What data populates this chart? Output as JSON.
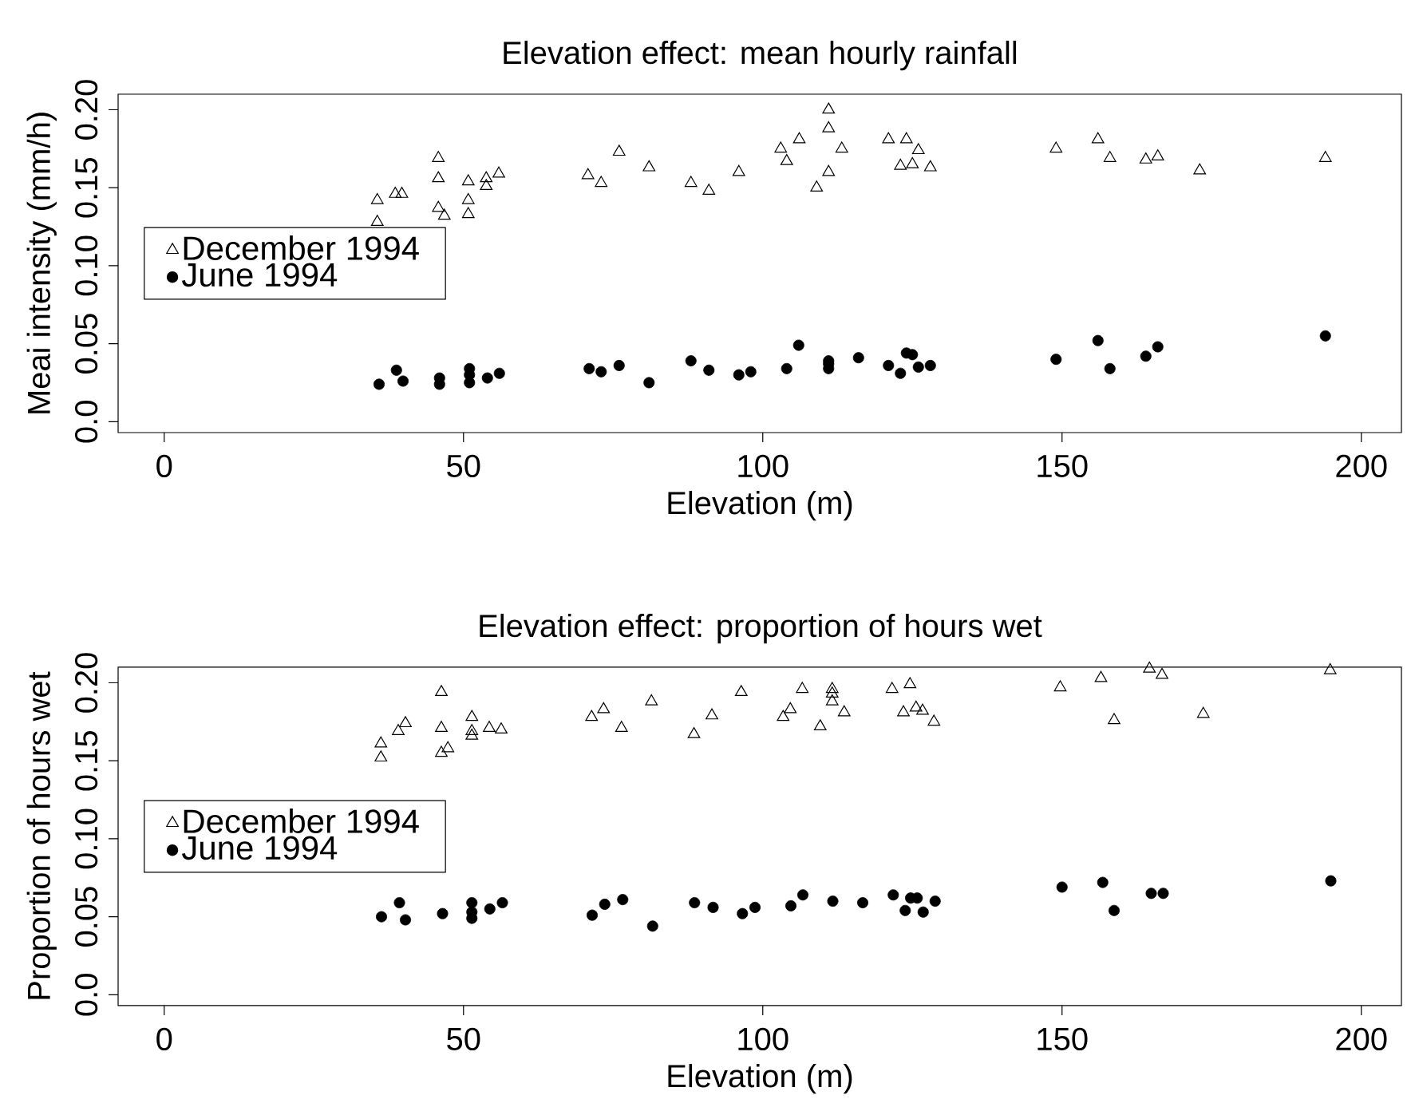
{
  "chart_data": [
    {
      "type": "scatter",
      "title": "Elevation effect: mean hourly rainfall",
      "xlabel": "Elevation (m)",
      "ylabel": "Meai intensity (mm/h)",
      "xlim": [
        -7.7,
        206.7
      ],
      "ylim": [
        -0.007,
        0.21
      ],
      "xticks": [
        0,
        50,
        100,
        150,
        200
      ],
      "yticks": [
        {
          "value": 0,
          "label": "0.0"
        },
        {
          "value": 0.05,
          "label": "0.05"
        },
        {
          "value": 0.1,
          "label": "0.10"
        },
        {
          "value": 0.15,
          "label": "0.15"
        },
        {
          "value": 0.2,
          "label": "0.20"
        }
      ],
      "legend": "left",
      "grid": false,
      "series": [
        {
          "name": "December 1994",
          "color": "#000000",
          "marker": "triangle",
          "x": [
            35.6,
            35.6,
            38.6,
            39.7,
            45.8,
            45.8,
            45.8,
            46.8,
            50.8,
            50.8,
            50.8,
            53.8,
            53.8,
            55.9,
            70.8,
            73,
            76,
            81,
            88,
            91,
            96,
            103,
            104,
            106.1,
            111,
            111,
            113.2,
            111,
            109,
            121,
            124,
            126,
            123,
            125,
            128,
            149,
            156,
            158,
            164,
            166,
            173,
            194
          ],
          "values": [
            0.142,
            0.128,
            0.146,
            0.146,
            0.169,
            0.156,
            0.137,
            0.132,
            0.154,
            0.142,
            0.133,
            0.156,
            0.151,
            0.159,
            0.158,
            0.153,
            0.173,
            0.163,
            0.153,
            0.148,
            0.16,
            0.175,
            0.167,
            0.181,
            0.2,
            0.188,
            0.175,
            0.16,
            0.15,
            0.181,
            0.181,
            0.174,
            0.164,
            0.165,
            0.163,
            0.175,
            0.181,
            0.169,
            0.168,
            0.17,
            0.161,
            0.169
          ]
        },
        {
          "name": "June 1994",
          "color": "#000000",
          "marker": "circle",
          "x": [
            35.9,
            38.8,
            39.9,
            46,
            46,
            51,
            51,
            51,
            54,
            56,
            71,
            73,
            76,
            81,
            88,
            91,
            96,
            98,
            104,
            106,
            111,
            111,
            111,
            116,
            121,
            123,
            124,
            125,
            126,
            128,
            149,
            156,
            158,
            164,
            166,
            194
          ],
          "values": [
            0.024,
            0.033,
            0.026,
            0.028,
            0.024,
            0.034,
            0.03,
            0.025,
            0.028,
            0.031,
            0.034,
            0.032,
            0.036,
            0.025,
            0.039,
            0.033,
            0.03,
            0.032,
            0.034,
            0.049,
            0.039,
            0.037,
            0.034,
            0.041,
            0.036,
            0.031,
            0.044,
            0.043,
            0.035,
            0.036,
            0.04,
            0.052,
            0.034,
            0.042,
            0.048,
            0.055
          ]
        }
      ]
    },
    {
      "type": "scatter",
      "title": "Elevation effect: proportion of hours wet",
      "xlabel": "Elevation (m)",
      "ylabel": "Proportion of hours wet",
      "xlim": [
        -7.7,
        206.7
      ],
      "ylim": [
        -0.007,
        0.21
      ],
      "xticks": [
        0,
        50,
        100,
        150,
        200
      ],
      "yticks": [
        {
          "value": 0,
          "label": "0.0"
        },
        {
          "value": 0.05,
          "label": "0.05"
        },
        {
          "value": 0.1,
          "label": "0.10"
        },
        {
          "value": 0.15,
          "label": "0.15"
        },
        {
          "value": 0.2,
          "label": "0.20"
        }
      ],
      "legend": "left",
      "grid": false,
      "series": [
        {
          "name": "December 1994",
          "color": "#000000",
          "marker": "triangle",
          "x": [
            36.2,
            36.2,
            39.1,
            40.3,
            46.3,
            46.3,
            46.3,
            47.4,
            51.4,
            51.4,
            51.4,
            54.3,
            56.3,
            71.4,
            73.4,
            76.4,
            81.4,
            88.5,
            91.5,
            96.4,
            103.4,
            104.6,
            106.6,
            111.6,
            111.6,
            111.6,
            109.6,
            113.6,
            121.6,
            124.6,
            123.5,
            125.6,
            126.7,
            128.6,
            149.7,
            156.5,
            158.7,
            164.6,
            166.7,
            173.6,
            194.8
          ],
          "values": [
            0.161,
            0.152,
            0.169,
            0.174,
            0.194,
            0.171,
            0.155,
            0.158,
            0.178,
            0.169,
            0.166,
            0.171,
            0.17,
            0.178,
            0.183,
            0.171,
            0.188,
            0.167,
            0.179,
            0.194,
            0.178,
            0.183,
            0.196,
            0.196,
            0.193,
            0.188,
            0.172,
            0.181,
            0.196,
            0.199,
            0.181,
            0.184,
            0.182,
            0.175,
            0.197,
            0.203,
            0.176,
            0.209,
            0.205,
            0.18,
            0.208
          ]
        },
        {
          "name": "June 1994",
          "color": "#000000",
          "marker": "circle",
          "x": [
            36.3,
            39.3,
            40.3,
            46.5,
            51.4,
            51.4,
            51.4,
            54.4,
            56.5,
            71.5,
            73.6,
            76.6,
            81.6,
            88.6,
            91.7,
            96.6,
            98.7,
            104.7,
            106.7,
            111.7,
            116.7,
            121.8,
            123.8,
            124.7,
            125.8,
            126.8,
            128.8,
            150,
            156.8,
            158.7,
            164.9,
            166.9,
            194.9
          ],
          "values": [
            0.05,
            0.059,
            0.048,
            0.052,
            0.059,
            0.053,
            0.049,
            0.055,
            0.059,
            0.051,
            0.058,
            0.061,
            0.044,
            0.059,
            0.056,
            0.052,
            0.056,
            0.057,
            0.064,
            0.06,
            0.059,
            0.064,
            0.054,
            0.062,
            0.062,
            0.053,
            0.06,
            0.069,
            0.072,
            0.054,
            0.065,
            0.065,
            0.073
          ]
        }
      ]
    }
  ]
}
